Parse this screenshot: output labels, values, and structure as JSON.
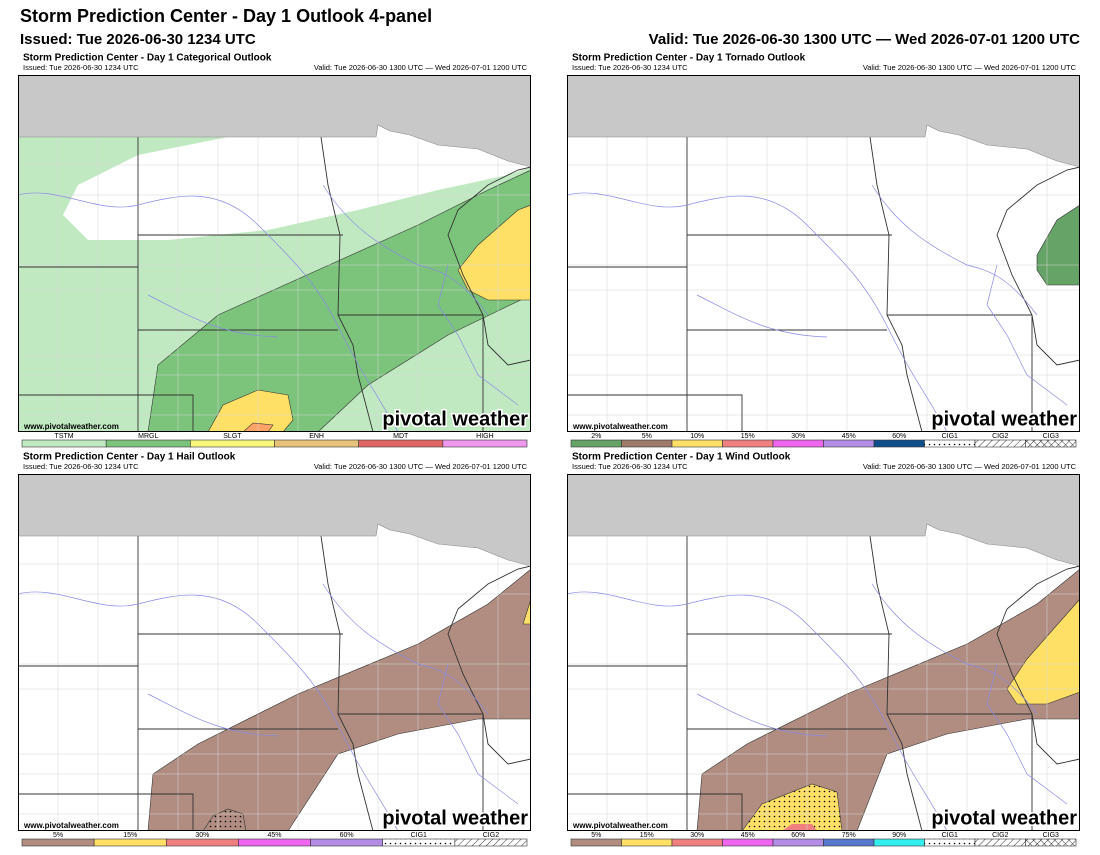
{
  "header": {
    "title": "Storm Prediction Center - Day 1 Outlook 4-panel",
    "issued": "Issued: Tue 2026-06-30 1234 UTC",
    "valid": "Valid: Tue 2026-06-30 1300 UTC — Wed 2026-07-01 1200 UTC"
  },
  "panels": [
    {
      "title": "Storm Prediction Center - Day 1 Categorical Outlook",
      "issued": "Issued: Tue 2026-06-30 1234 UTC",
      "valid": "Valid: Tue 2026-06-30 1300 UTC — Wed 2026-07-01 1200 UTC",
      "watermark": "www.pivotalweather.com",
      "logo": "pivotal weather",
      "legend": [
        {
          "label": "TSTM",
          "color": "#c1e9c1"
        },
        {
          "label": "MRGL",
          "color": "#7cc47c"
        },
        {
          "label": "SLGT",
          "color": "#f6f67b"
        },
        {
          "label": "ENH",
          "color": "#e6c27a"
        },
        {
          "label": "MDT",
          "color": "#e06666"
        },
        {
          "label": "HIGH",
          "color": "#ee99ee"
        }
      ]
    },
    {
      "title": "Storm Prediction Center - Day 1 Tornado Outlook",
      "issued": "Issued: Tue 2026-06-30 1234 UTC",
      "valid": "Valid: Tue 2026-06-30 1300 UTC — Wed 2026-07-01 1200 UTC",
      "watermark": "www.pivotalweather.com",
      "logo": "pivotal weather",
      "legend": [
        {
          "label": "2%",
          "color": "#66a366"
        },
        {
          "label": "5%",
          "color": "#9d7a6a"
        },
        {
          "label": "10%",
          "color": "#ffe066"
        },
        {
          "label": "15%",
          "color": "#f08080"
        },
        {
          "label": "30%",
          "color": "#ee66ee"
        },
        {
          "label": "45%",
          "color": "#b38ce6"
        },
        {
          "label": "60%",
          "color": "#104e8b"
        },
        {
          "label": "CIG1",
          "color": "#ffffff",
          "pattern": "dots"
        },
        {
          "label": "CIG2",
          "color": "#ffffff",
          "pattern": "hatch"
        },
        {
          "label": "CIG3",
          "color": "#ffffff",
          "pattern": "cross"
        }
      ]
    },
    {
      "title": "Storm Prediction Center - Day 1 Hail Outlook",
      "issued": "Issued: Tue 2026-06-30 1234 UTC",
      "valid": "Valid: Tue 2026-06-30 1300 UTC — Wed 2026-07-01 1200 UTC",
      "watermark": "www.pivotalweather.com",
      "logo": "pivotal weather",
      "legend": [
        {
          "label": "5%",
          "color": "#b08d80"
        },
        {
          "label": "15%",
          "color": "#ffe066"
        },
        {
          "label": "30%",
          "color": "#f08080"
        },
        {
          "label": "45%",
          "color": "#ee66ee"
        },
        {
          "label": "60%",
          "color": "#b38ce6"
        },
        {
          "label": "CIG1",
          "color": "#ffffff",
          "pattern": "dots"
        },
        {
          "label": "CIG2",
          "color": "#ffffff",
          "pattern": "hatch"
        }
      ]
    },
    {
      "title": "Storm Prediction Center - Day 1 Wind Outlook",
      "issued": "Issued: Tue 2026-06-30 1234 UTC",
      "valid": "Valid: Tue 2026-06-30 1300 UTC — Wed 2026-07-01 1200 UTC",
      "watermark": "www.pivotalweather.com",
      "logo": "pivotal weather",
      "legend": [
        {
          "label": "5%",
          "color": "#b08d80"
        },
        {
          "label": "15%",
          "color": "#ffe066"
        },
        {
          "label": "30%",
          "color": "#f08080"
        },
        {
          "label": "45%",
          "color": "#ee66ee"
        },
        {
          "label": "60%",
          "color": "#b38ce6"
        },
        {
          "label": "75%",
          "color": "#5577cc"
        },
        {
          "label": "90%",
          "color": "#33eeee"
        },
        {
          "label": "CIG1",
          "color": "#ffffff",
          "pattern": "dots"
        },
        {
          "label": "CIG2",
          "color": "#ffffff",
          "pattern": "hatch"
        },
        {
          "label": "CIG3",
          "color": "#ffffff",
          "pattern": "cross"
        }
      ]
    }
  ]
}
